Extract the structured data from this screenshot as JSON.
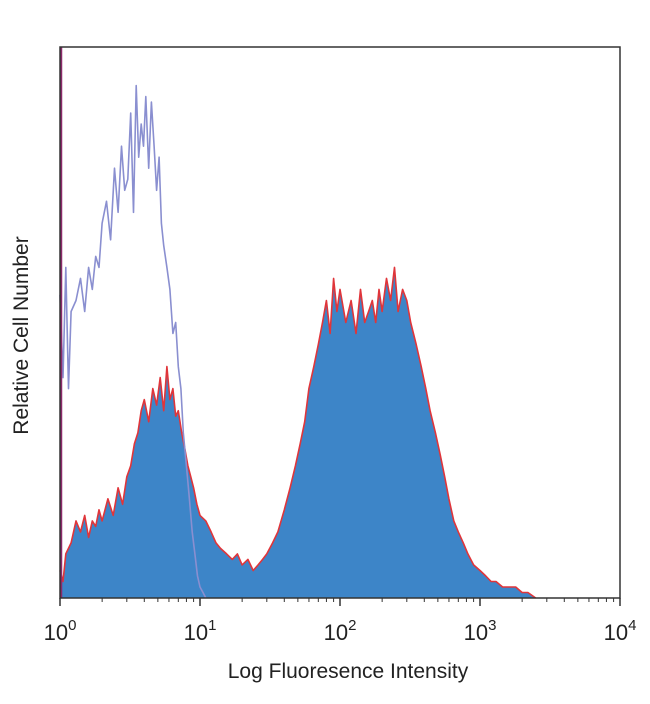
{
  "chart_data": {
    "type": "area",
    "xlabel": "Log Fluoresence Intensity",
    "ylabel": "Relative Cell Number",
    "x_scale": "log",
    "xlim": [
      1,
      10000
    ],
    "ylim": [
      0,
      100
    ],
    "grid": false,
    "x_ticks": [
      {
        "value": 1,
        "base": "10",
        "exp": "0"
      },
      {
        "value": 10,
        "base": "10",
        "exp": "1"
      },
      {
        "value": 100,
        "base": "10",
        "exp": "2"
      },
      {
        "value": 1000,
        "base": "10",
        "exp": "3"
      },
      {
        "value": 10000,
        "base": "10",
        "exp": "4"
      }
    ],
    "series": [
      {
        "role": "isotype-control",
        "style": "outline",
        "color": "#8a8fd0",
        "x": [
          1.0,
          1.05,
          1.1,
          1.15,
          1.2,
          1.3,
          1.4,
          1.5,
          1.6,
          1.7,
          1.8,
          1.9,
          2.0,
          2.15,
          2.3,
          2.45,
          2.6,
          2.75,
          2.9,
          3.05,
          3.2,
          3.35,
          3.5,
          3.65,
          3.8,
          3.95,
          4.1,
          4.3,
          4.5,
          4.7,
          4.9,
          5.1,
          5.3,
          5.5,
          5.8,
          6.1,
          6.4,
          6.7,
          7.0,
          7.3,
          7.6,
          8.0,
          8.4,
          8.8,
          9.2,
          9.6,
          10.0,
          10.5,
          11.0
        ],
        "values": [
          55,
          40,
          60,
          38,
          52,
          54,
          58,
          52,
          60,
          56,
          62,
          60,
          68,
          72,
          65,
          78,
          70,
          82,
          74,
          76,
          88,
          70,
          93,
          80,
          86,
          82,
          91,
          78,
          90,
          82,
          74,
          80,
          68,
          64,
          60,
          56,
          48,
          50,
          42,
          38,
          30,
          24,
          18,
          12,
          8,
          4,
          2,
          1,
          0
        ]
      },
      {
        "role": "stained-sample",
        "style": "filled",
        "color": "#3d85c8",
        "edge_color": "#e0353a",
        "x": [
          1.0,
          1.05,
          1.1,
          1.2,
          1.3,
          1.4,
          1.5,
          1.6,
          1.7,
          1.8,
          1.9,
          2.0,
          2.2,
          2.4,
          2.6,
          2.8,
          3.0,
          3.2,
          3.4,
          3.6,
          3.8,
          4.0,
          4.3,
          4.6,
          4.9,
          5.2,
          5.5,
          5.8,
          6.1,
          6.4,
          6.7,
          7.0,
          7.4,
          7.8,
          8.2,
          8.6,
          9.0,
          9.5,
          10.0,
          11.0,
          12.0,
          13.0,
          14.0,
          15.5,
          17.0,
          18.5,
          20.0,
          22.0,
          24.0,
          26.0,
          28.0,
          30.0,
          33.0,
          36.0,
          40.0,
          44.0,
          48.0,
          52.0,
          56.0,
          60.0,
          65.0,
          70.0,
          75.0,
          80.0,
          85.0,
          90.0,
          95.0,
          100.0,
          110.0,
          120.0,
          130.0,
          140.0,
          150.0,
          160.0,
          170.0,
          180.0,
          190.0,
          200.0,
          215.0,
          230.0,
          245.0,
          260.0,
          280.0,
          300.0,
          320.0,
          350.0,
          380.0,
          410.0,
          440.0,
          480.0,
          520.0,
          560.0,
          600.0,
          650.0,
          700.0,
          760.0,
          820.0,
          900.0,
          1000.0,
          1100.0,
          1200.0,
          1300.0,
          1450.0,
          1600.0,
          1800.0,
          2000.0,
          2200.0,
          2500.0
        ],
        "values": [
          5,
          3,
          8,
          10,
          14,
          12,
          15,
          11,
          14,
          13,
          16,
          14,
          18,
          15,
          20,
          17,
          22,
          24,
          28,
          30,
          34,
          36,
          32,
          38,
          35,
          40,
          34,
          42,
          36,
          38,
          33,
          34,
          30,
          27,
          24,
          22,
          20,
          17,
          15,
          14,
          12,
          10,
          9,
          8,
          7,
          8,
          6,
          7,
          5,
          6,
          7,
          8,
          10,
          12,
          16,
          20,
          24,
          28,
          32,
          38,
          42,
          46,
          50,
          54,
          48,
          58,
          52,
          56,
          50,
          54,
          48,
          56,
          50,
          52,
          54,
          50,
          56,
          52,
          58,
          54,
          60,
          52,
          56,
          54,
          50,
          46,
          42,
          38,
          34,
          30,
          26,
          22,
          18,
          14,
          12,
          10,
          8,
          6,
          5,
          4,
          3,
          3,
          2,
          2,
          2,
          1,
          1,
          0
        ]
      }
    ]
  }
}
